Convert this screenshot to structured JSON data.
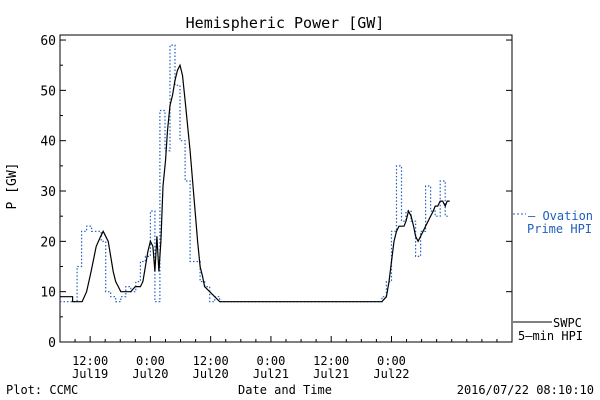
{
  "chart_data": {
    "type": "line",
    "title": "Hemispheric Power [GW]",
    "xlabel": "Date and Time",
    "ylabel": "P [GW]",
    "ylim": [
      0,
      61
    ],
    "xlim": [
      -18,
      72
    ],
    "yticks": [
      0,
      10,
      20,
      30,
      40,
      50,
      60
    ],
    "xticks": [
      {
        "x": -12,
        "line1": "12:00",
        "line2": "Jul19"
      },
      {
        "x": 0,
        "line1": "0:00",
        "line2": "Jul20"
      },
      {
        "x": 12,
        "line1": "12:00",
        "line2": "Jul20"
      },
      {
        "x": 24,
        "line1": "0:00",
        "line2": "Jul21"
      },
      {
        "x": 36,
        "line1": "12:00",
        "line2": "Jul21"
      },
      {
        "x": 48,
        "line1": "0:00",
        "line2": "Jul22"
      }
    ],
    "x_unit_note": "hours relative to 2016/07/20 00:00",
    "series": [
      {
        "name": "Ovation Prime HPI",
        "style": "dotted",
        "color": "#1f5fbf",
        "points": [
          [
            -18,
            8
          ],
          [
            -14.6,
            8
          ],
          [
            -14.6,
            15
          ],
          [
            -13.7,
            15
          ],
          [
            -13.7,
            22
          ],
          [
            -12.7,
            22
          ],
          [
            -12.7,
            23
          ],
          [
            -11.7,
            23
          ],
          [
            -11.7,
            22
          ],
          [
            -9.8,
            22
          ],
          [
            -9.8,
            20
          ],
          [
            -8.9,
            20
          ],
          [
            -8.9,
            10
          ],
          [
            -7.9,
            10
          ],
          [
            -7.9,
            9
          ],
          [
            -6.9,
            9
          ],
          [
            -6.9,
            8
          ],
          [
            -5.9,
            8
          ],
          [
            -5.9,
            9
          ],
          [
            -4.9,
            9
          ],
          [
            -4.9,
            11
          ],
          [
            -3.9,
            11
          ],
          [
            -3.9,
            10
          ],
          [
            -2.9,
            10
          ],
          [
            -2.9,
            12
          ],
          [
            -2.0,
            12
          ],
          [
            -2.0,
            16
          ],
          [
            -1.0,
            16
          ],
          [
            -1.0,
            17
          ],
          [
            0,
            17
          ],
          [
            0,
            26
          ],
          [
            0.9,
            26
          ],
          [
            0.9,
            8
          ],
          [
            1.9,
            8
          ],
          [
            1.9,
            46
          ],
          [
            2.9,
            46
          ],
          [
            2.9,
            38
          ],
          [
            3.9,
            38
          ],
          [
            3.9,
            59
          ],
          [
            4.9,
            59
          ],
          [
            4.9,
            51
          ],
          [
            5.9,
            51
          ],
          [
            5.9,
            40
          ],
          [
            6.9,
            40
          ],
          [
            6.9,
            32
          ],
          [
            7.9,
            32
          ],
          [
            7.9,
            16
          ],
          [
            9.9,
            16
          ],
          [
            9.9,
            12
          ],
          [
            10.8,
            12
          ],
          [
            10.8,
            11
          ],
          [
            11.8,
            11
          ],
          [
            11.8,
            8
          ],
          [
            12.8,
            8
          ],
          [
            12.8,
            9
          ],
          [
            13.8,
            9
          ],
          [
            13.8,
            8
          ],
          [
            46.1,
            8
          ],
          [
            46.1,
            9
          ],
          [
            47.0,
            9
          ],
          [
            47.0,
            12
          ],
          [
            48.0,
            12
          ],
          [
            48.0,
            22
          ],
          [
            49.0,
            22
          ],
          [
            49.0,
            35
          ],
          [
            50.0,
            35
          ],
          [
            50.0,
            24
          ],
          [
            50.9,
            24
          ],
          [
            50.9,
            26
          ],
          [
            51.9,
            26
          ],
          [
            51.9,
            24
          ],
          [
            52.8,
            24
          ],
          [
            52.8,
            17
          ],
          [
            53.8,
            17
          ],
          [
            53.8,
            22
          ],
          [
            54.8,
            22
          ],
          [
            54.8,
            31
          ],
          [
            55.8,
            31
          ],
          [
            55.8,
            26
          ],
          [
            56.7,
            26
          ],
          [
            56.7,
            25
          ],
          [
            57.7,
            25
          ],
          [
            57.7,
            32
          ],
          [
            58.7,
            32
          ],
          [
            58.7,
            25
          ],
          [
            59.6,
            25
          ]
        ]
      },
      {
        "name": "SWPC 5-min HPI",
        "style": "solid",
        "color": "#000000",
        "points": [
          [
            -18,
            9
          ],
          [
            -15.5,
            9
          ],
          [
            -15.5,
            8
          ],
          [
            -13.6,
            8
          ],
          [
            -12.7,
            10
          ],
          [
            -11.8,
            14
          ],
          [
            -10.8,
            19
          ],
          [
            -9.9,
            21
          ],
          [
            -9.4,
            22
          ],
          [
            -8.9,
            21
          ],
          [
            -8.4,
            20
          ],
          [
            -7.9,
            17
          ],
          [
            -7.4,
            14
          ],
          [
            -6.9,
            12
          ],
          [
            -6.4,
            11
          ],
          [
            -5.9,
            10
          ],
          [
            -4.9,
            10
          ],
          [
            -3.9,
            10
          ],
          [
            -3.0,
            11
          ],
          [
            -2.0,
            11
          ],
          [
            -1.5,
            12
          ],
          [
            -1.0,
            15
          ],
          [
            -0.5,
            18
          ],
          [
            0,
            20
          ],
          [
            0.5,
            19
          ],
          [
            0.9,
            14
          ],
          [
            1.3,
            21
          ],
          [
            1.7,
            14
          ],
          [
            2.1,
            20
          ],
          [
            2.5,
            31
          ],
          [
            3.0,
            36
          ],
          [
            3.4,
            42
          ],
          [
            3.9,
            47
          ],
          [
            4.4,
            49
          ],
          [
            4.9,
            52
          ],
          [
            5.4,
            54
          ],
          [
            5.9,
            55
          ],
          [
            6.4,
            53
          ],
          [
            6.9,
            48
          ],
          [
            7.4,
            43
          ],
          [
            7.9,
            38
          ],
          [
            8.4,
            32
          ],
          [
            8.9,
            26
          ],
          [
            9.4,
            20
          ],
          [
            9.9,
            15
          ],
          [
            10.4,
            13
          ],
          [
            10.8,
            11
          ],
          [
            11.8,
            10
          ],
          [
            12.8,
            9
          ],
          [
            13.8,
            8
          ],
          [
            46.1,
            8
          ],
          [
            47.0,
            9
          ],
          [
            47.5,
            12
          ],
          [
            48.0,
            16
          ],
          [
            48.5,
            20
          ],
          [
            49.0,
            22
          ],
          [
            49.5,
            23
          ],
          [
            50.0,
            23
          ],
          [
            50.5,
            23
          ],
          [
            50.9,
            24
          ],
          [
            51.4,
            26
          ],
          [
            51.9,
            25
          ],
          [
            52.4,
            23
          ],
          [
            52.8,
            21
          ],
          [
            53.3,
            20
          ],
          [
            53.8,
            21
          ],
          [
            54.3,
            22
          ],
          [
            54.8,
            23
          ],
          [
            55.3,
            24
          ],
          [
            55.8,
            25
          ],
          [
            56.3,
            26
          ],
          [
            56.7,
            27
          ],
          [
            57.2,
            27
          ],
          [
            57.7,
            28
          ],
          [
            58.2,
            28
          ],
          [
            58.7,
            27
          ],
          [
            59.1,
            28
          ],
          [
            59.6,
            28
          ]
        ]
      }
    ]
  },
  "legend": {
    "ovation_line1": "— Ovation",
    "ovation_line2": "Prime HPI",
    "swpc_line1": "SWPC",
    "swpc_line2": "5–min HPI"
  },
  "footer": {
    "left": "Plot: CCMC",
    "right": "2016/07/22 08:10:10"
  }
}
